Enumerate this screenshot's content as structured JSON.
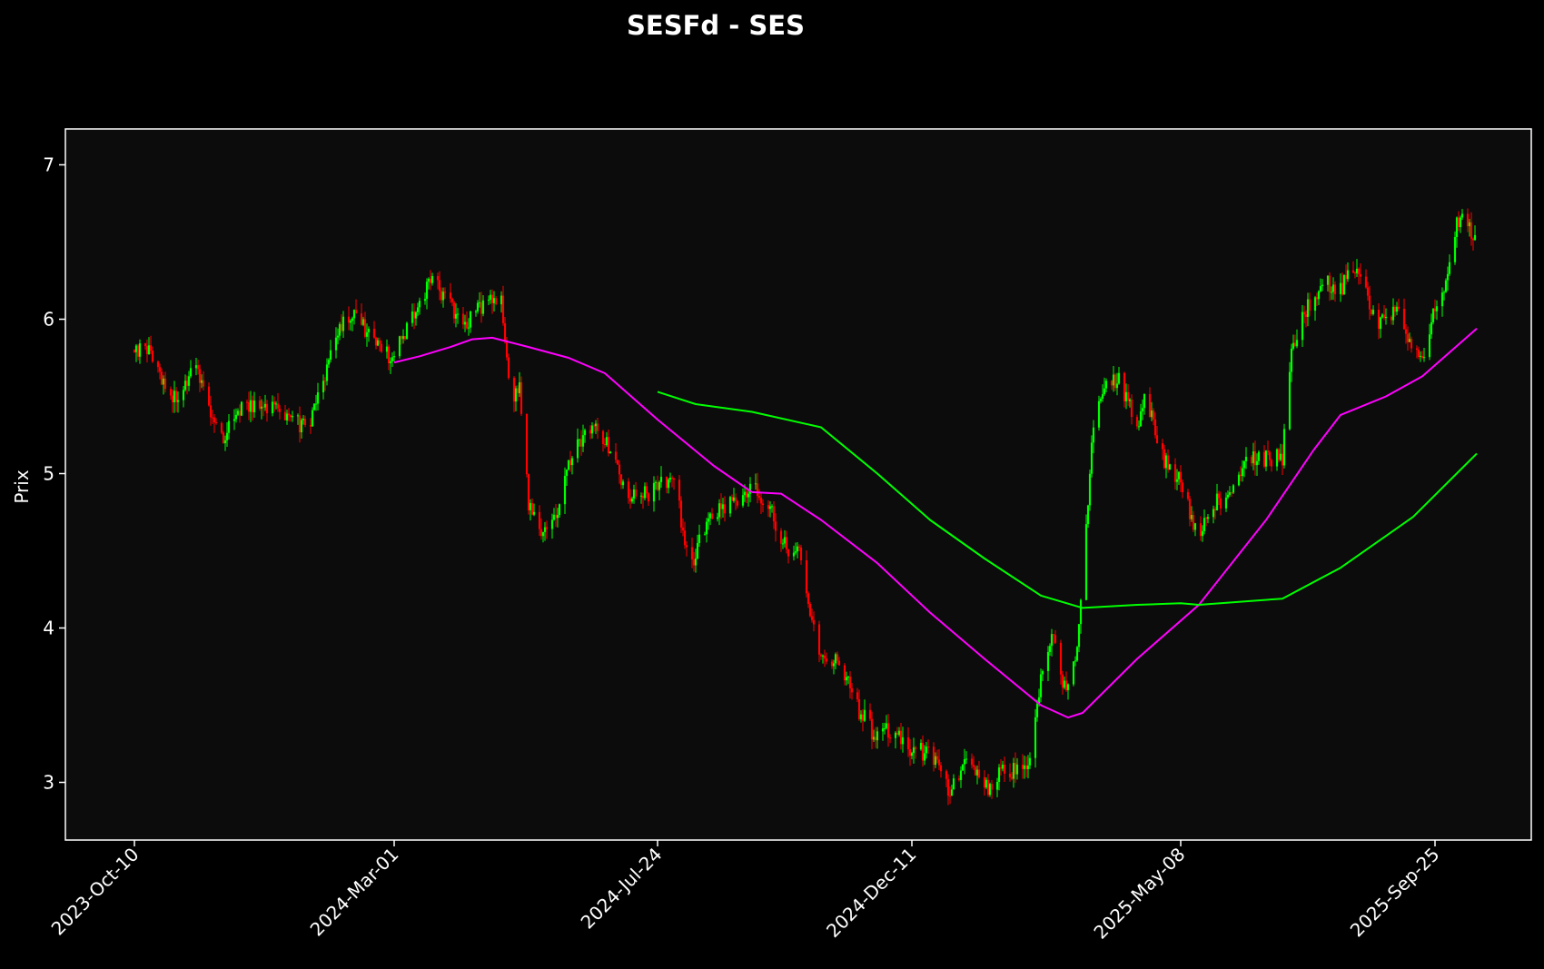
{
  "chart_data": {
    "type": "candlestick",
    "title": "SESFd - SES",
    "ylabel": "Prix",
    "xlabel": "",
    "x_start": "2023-10-10",
    "x_end": "2025-10-18",
    "ylim": [
      2.63,
      7.23
    ],
    "yticks": [
      3,
      4,
      5,
      6,
      7
    ],
    "xticks": [
      {
        "date": "2023-10-10",
        "label": "2023-Oct-10"
      },
      {
        "date": "2024-03-01",
        "label": "2024-Mar-01"
      },
      {
        "date": "2024-07-24",
        "label": "2024-Jul-24"
      },
      {
        "date": "2024-12-11",
        "label": "2024-Dec-11"
      },
      {
        "date": "2025-05-08",
        "label": "2025-May-08"
      },
      {
        "date": "2025-09-25",
        "label": "2025-Sep-25"
      }
    ],
    "grid": false,
    "colors": {
      "background": "#000000",
      "plot_background": "#0c0c0c",
      "up": "#00ff00",
      "down": "#ff0000",
      "ma_short": "#ff00ff",
      "ma_long": "#00ff00",
      "axes": "#ffffff",
      "text": "#ffffff"
    },
    "price_path": [
      [
        "2023-10-10",
        5.8
      ],
      [
        "2023-10-16",
        5.85
      ],
      [
        "2023-10-24",
        5.65
      ],
      [
        "2023-11-03",
        5.45
      ],
      [
        "2023-11-12",
        5.7
      ],
      [
        "2023-11-19",
        5.45
      ],
      [
        "2023-11-28",
        5.25
      ],
      [
        "2023-12-07",
        5.4
      ],
      [
        "2023-12-18",
        5.45
      ],
      [
        "2024-01-03",
        5.35
      ],
      [
        "2024-01-14",
        5.3
      ],
      [
        "2024-01-21",
        5.55
      ],
      [
        "2024-01-31",
        5.95
      ],
      [
        "2024-02-10",
        6.05
      ],
      [
        "2024-02-17",
        5.85
      ],
      [
        "2024-03-01",
        5.75
      ],
      [
        "2024-03-12",
        6.05
      ],
      [
        "2024-03-22",
        6.25
      ],
      [
        "2024-04-01",
        6.1
      ],
      [
        "2024-04-08",
        5.95
      ],
      [
        "2024-04-19",
        6.1
      ],
      [
        "2024-04-29",
        6.15
      ],
      [
        "2024-05-04",
        5.5
      ],
      [
        "2024-05-09",
        5.55
      ],
      [
        "2024-05-14",
        4.8
      ],
      [
        "2024-05-22",
        4.6
      ],
      [
        "2024-05-28",
        4.7
      ],
      [
        "2024-06-08",
        5.2
      ],
      [
        "2024-06-20",
        5.3
      ],
      [
        "2024-06-29",
        5.15
      ],
      [
        "2024-07-05",
        4.9
      ],
      [
        "2024-07-14",
        4.85
      ],
      [
        "2024-07-24",
        4.9
      ],
      [
        "2024-08-03",
        5.0
      ],
      [
        "2024-08-08",
        4.5
      ],
      [
        "2024-08-13",
        4.45
      ],
      [
        "2024-08-20",
        4.7
      ],
      [
        "2024-08-30",
        4.8
      ],
      [
        "2024-09-14",
        4.9
      ],
      [
        "2024-09-24",
        4.8
      ],
      [
        "2024-09-30",
        4.55
      ],
      [
        "2024-10-12",
        4.45
      ],
      [
        "2024-10-17",
        4.0
      ],
      [
        "2024-10-22",
        3.85
      ],
      [
        "2024-11-03",
        3.75
      ],
      [
        "2024-11-10",
        3.5
      ],
      [
        "2024-11-21",
        3.3
      ],
      [
        "2024-12-01",
        3.35
      ],
      [
        "2024-12-11",
        3.2
      ],
      [
        "2024-12-21",
        3.2
      ],
      [
        "2025-01-01",
        2.95
      ],
      [
        "2025-01-10",
        3.15
      ],
      [
        "2025-01-20",
        2.95
      ],
      [
        "2025-01-29",
        3.05
      ],
      [
        "2025-02-08",
        3.1
      ],
      [
        "2025-02-15",
        3.15
      ],
      [
        "2025-02-20",
        3.7
      ],
      [
        "2025-02-27",
        4.0
      ],
      [
        "2025-03-05",
        3.6
      ],
      [
        "2025-03-11",
        3.8
      ],
      [
        "2025-03-15",
        4.3
      ],
      [
        "2025-03-20",
        5.2
      ],
      [
        "2025-03-26",
        5.55
      ],
      [
        "2025-04-04",
        5.6
      ],
      [
        "2025-04-14",
        5.3
      ],
      [
        "2025-04-19",
        5.5
      ],
      [
        "2025-04-28",
        5.1
      ],
      [
        "2025-05-08",
        4.95
      ],
      [
        "2025-05-18",
        4.55
      ],
      [
        "2025-05-25",
        4.8
      ],
      [
        "2025-06-04",
        4.85
      ],
      [
        "2025-06-13",
        5.1
      ],
      [
        "2025-06-24",
        5.1
      ],
      [
        "2025-07-03",
        5.1
      ],
      [
        "2025-07-08",
        5.8
      ],
      [
        "2025-07-15",
        6.05
      ],
      [
        "2025-07-25",
        6.25
      ],
      [
        "2025-08-04",
        6.2
      ],
      [
        "2025-08-14",
        6.35
      ],
      [
        "2025-08-24",
        5.95
      ],
      [
        "2025-09-03",
        6.05
      ],
      [
        "2025-09-13",
        5.85
      ],
      [
        "2025-09-18",
        5.75
      ],
      [
        "2025-09-25",
        6.1
      ],
      [
        "2025-09-30",
        6.2
      ],
      [
        "2025-10-05",
        6.55
      ],
      [
        "2025-10-10",
        6.7
      ],
      [
        "2025-10-18",
        6.5
      ]
    ],
    "series": [
      {
        "color": "#ff00ff",
        "x": [
          "2024-03-01",
          "2024-03-15",
          "2024-04-01",
          "2024-04-13",
          "2024-04-24",
          "2024-05-14",
          "2024-06-05",
          "2024-06-25",
          "2024-07-24",
          "2024-08-24",
          "2024-09-14",
          "2024-09-30",
          "2024-10-22",
          "2024-11-22",
          "2024-12-21",
          "2025-01-20",
          "2025-02-20",
          "2025-03-07",
          "2025-03-15",
          "2025-04-14",
          "2025-05-18",
          "2025-06-24",
          "2025-07-20",
          "2025-08-04",
          "2025-08-29",
          "2025-09-18",
          "2025-10-18"
        ],
        "y": [
          5.72,
          5.76,
          5.82,
          5.87,
          5.88,
          5.82,
          5.75,
          5.65,
          5.35,
          5.05,
          4.88,
          4.87,
          4.7,
          4.42,
          4.1,
          3.8,
          3.5,
          3.42,
          3.45,
          3.8,
          4.15,
          4.7,
          5.15,
          5.38,
          5.5,
          5.63,
          5.94
        ]
      },
      {
        "color": "#00ff00",
        "x": [
          "2024-07-24",
          "2024-08-14",
          "2024-09-14",
          "2024-10-22",
          "2024-11-22",
          "2024-12-21",
          "2025-01-20",
          "2025-02-20",
          "2025-03-15",
          "2025-04-14",
          "2025-05-08",
          "2025-05-18",
          "2025-07-03",
          "2025-08-04",
          "2025-09-13",
          "2025-10-18"
        ],
        "y": [
          5.53,
          5.45,
          5.4,
          5.3,
          5.0,
          4.7,
          4.45,
          4.21,
          4.13,
          4.15,
          4.16,
          4.15,
          4.19,
          4.39,
          4.72,
          5.13
        ]
      }
    ]
  }
}
